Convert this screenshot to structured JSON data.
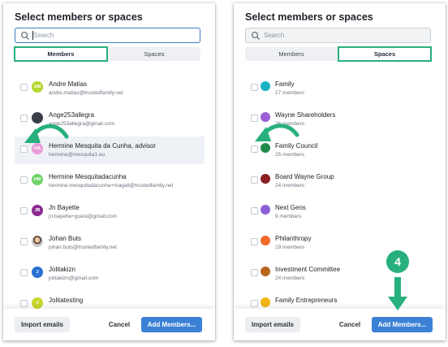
{
  "colors": {
    "accent_green": "#27b07d",
    "primary_blue": "#3b81d6"
  },
  "left": {
    "title": "Select members or spaces",
    "search_placeholder": "Search",
    "tabs": [
      "Members",
      "Spaces"
    ],
    "active_tab": "Members",
    "members": [
      {
        "initials": "AM",
        "name": "Andre Matias",
        "email": "andre.matias@trustedfamily.net",
        "avatar_color": "#b5d62e"
      },
      {
        "initials": "",
        "name": "Ange253allegra",
        "email": "ange253allegra@gmail.com",
        "avatar_color": "#3a3f47"
      },
      {
        "initials": "HA",
        "name": "Hermine Mesquita da Cunha, advisor",
        "email": "hermine@mesquita1.eu",
        "avatar_color": "#ea9bd8"
      },
      {
        "initials": "HM",
        "name": "Hermine Mesquitadacunha",
        "email": "hermine.mesquitadacunha+magali@trustedfamily.net",
        "avatar_color": "#6fd36b"
      },
      {
        "initials": "JB",
        "name": "Jn Bayette",
        "email": "jn.bayette+guest@gmail.com",
        "avatar_color": "#8a2a8f"
      },
      {
        "initials": "",
        "name": "Johan Buts",
        "email": "johan.buts@trustedfamily.net",
        "avatar_color": "photo"
      },
      {
        "initials": "J",
        "name": "Jolitakizn",
        "email": "jolitakizn@gmail.com",
        "avatar_color": "#2a6fd1"
      },
      {
        "initials": "J",
        "name": "Jolitatesting",
        "email": "",
        "avatar_color": "#c9d62e"
      }
    ],
    "buttons": {
      "import": "Import emails",
      "cancel": "Cancel",
      "add": "Add Members..."
    }
  },
  "right": {
    "title": "Select members or spaces",
    "search_placeholder": "Search",
    "tabs": [
      "Members",
      "Spaces"
    ],
    "active_tab": "Spaces",
    "spaces": [
      {
        "name": "Family",
        "members": "27 members",
        "color": "#1bb3c4"
      },
      {
        "name": "Wayne Shareholders",
        "members": "26 members",
        "color": "#9a5fd6"
      },
      {
        "name": "Family Council",
        "members": "25 members",
        "color": "#1e8a4a"
      },
      {
        "name": "Board Wayne Group",
        "members": "24 members",
        "color": "#8a1f24"
      },
      {
        "name": "Next Gens",
        "members": "9 members",
        "color": "#8c5fd6"
      },
      {
        "name": "Philanthropy",
        "members": "19 members",
        "color": "#f06a2a"
      },
      {
        "name": "Investment Committee",
        "members": "24 members",
        "color": "#b8651e"
      },
      {
        "name": "Family Entrepreneurs",
        "members": "",
        "color": "#f2b511"
      }
    ],
    "buttons": {
      "import": "Import emails",
      "cancel": "Cancel",
      "add": "Add Members..."
    }
  },
  "step_badge": "4"
}
